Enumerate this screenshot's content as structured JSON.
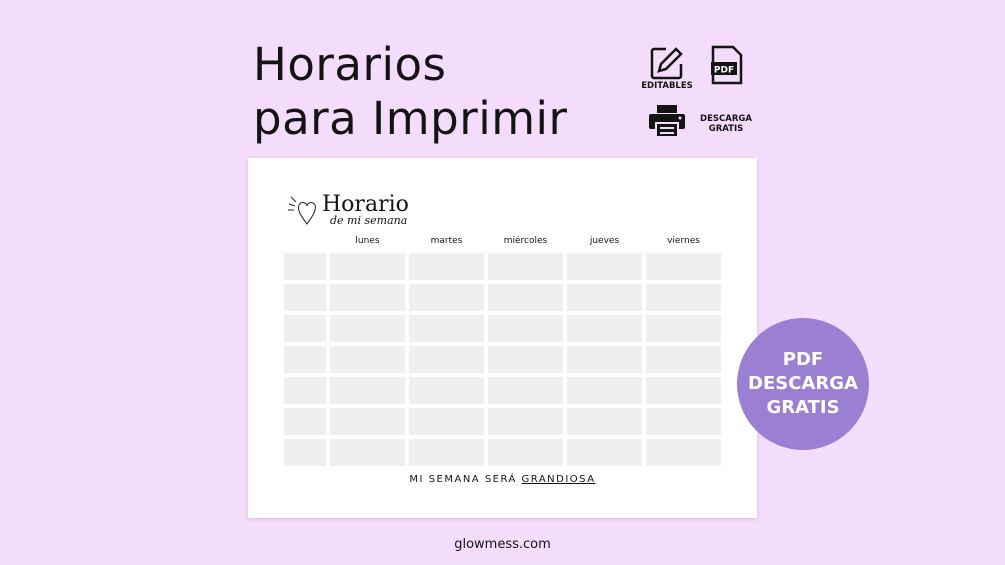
{
  "headline": {
    "line1": "Horarios",
    "line2": "para Imprimir"
  },
  "features": {
    "editables": "EDITABLES",
    "pdf_icon_text": "PDF",
    "descarga_line1": "DESCARGA",
    "descarga_line2": "GRATIS"
  },
  "schedule": {
    "title": "Horario",
    "subtitle": "de mi semana",
    "days": [
      "lunes",
      "martes",
      "miércoles",
      "jueves",
      "viernes"
    ],
    "rows": 7,
    "motto_prefix": "MI SEMANA SERÁ ",
    "motto_emphasis": "GRANDIOSA"
  },
  "badge": {
    "line1": "PDF",
    "line2": "DESCARGA",
    "line3": "GRATIS",
    "color": "#9b7fd2"
  },
  "site": "glowmess.com"
}
